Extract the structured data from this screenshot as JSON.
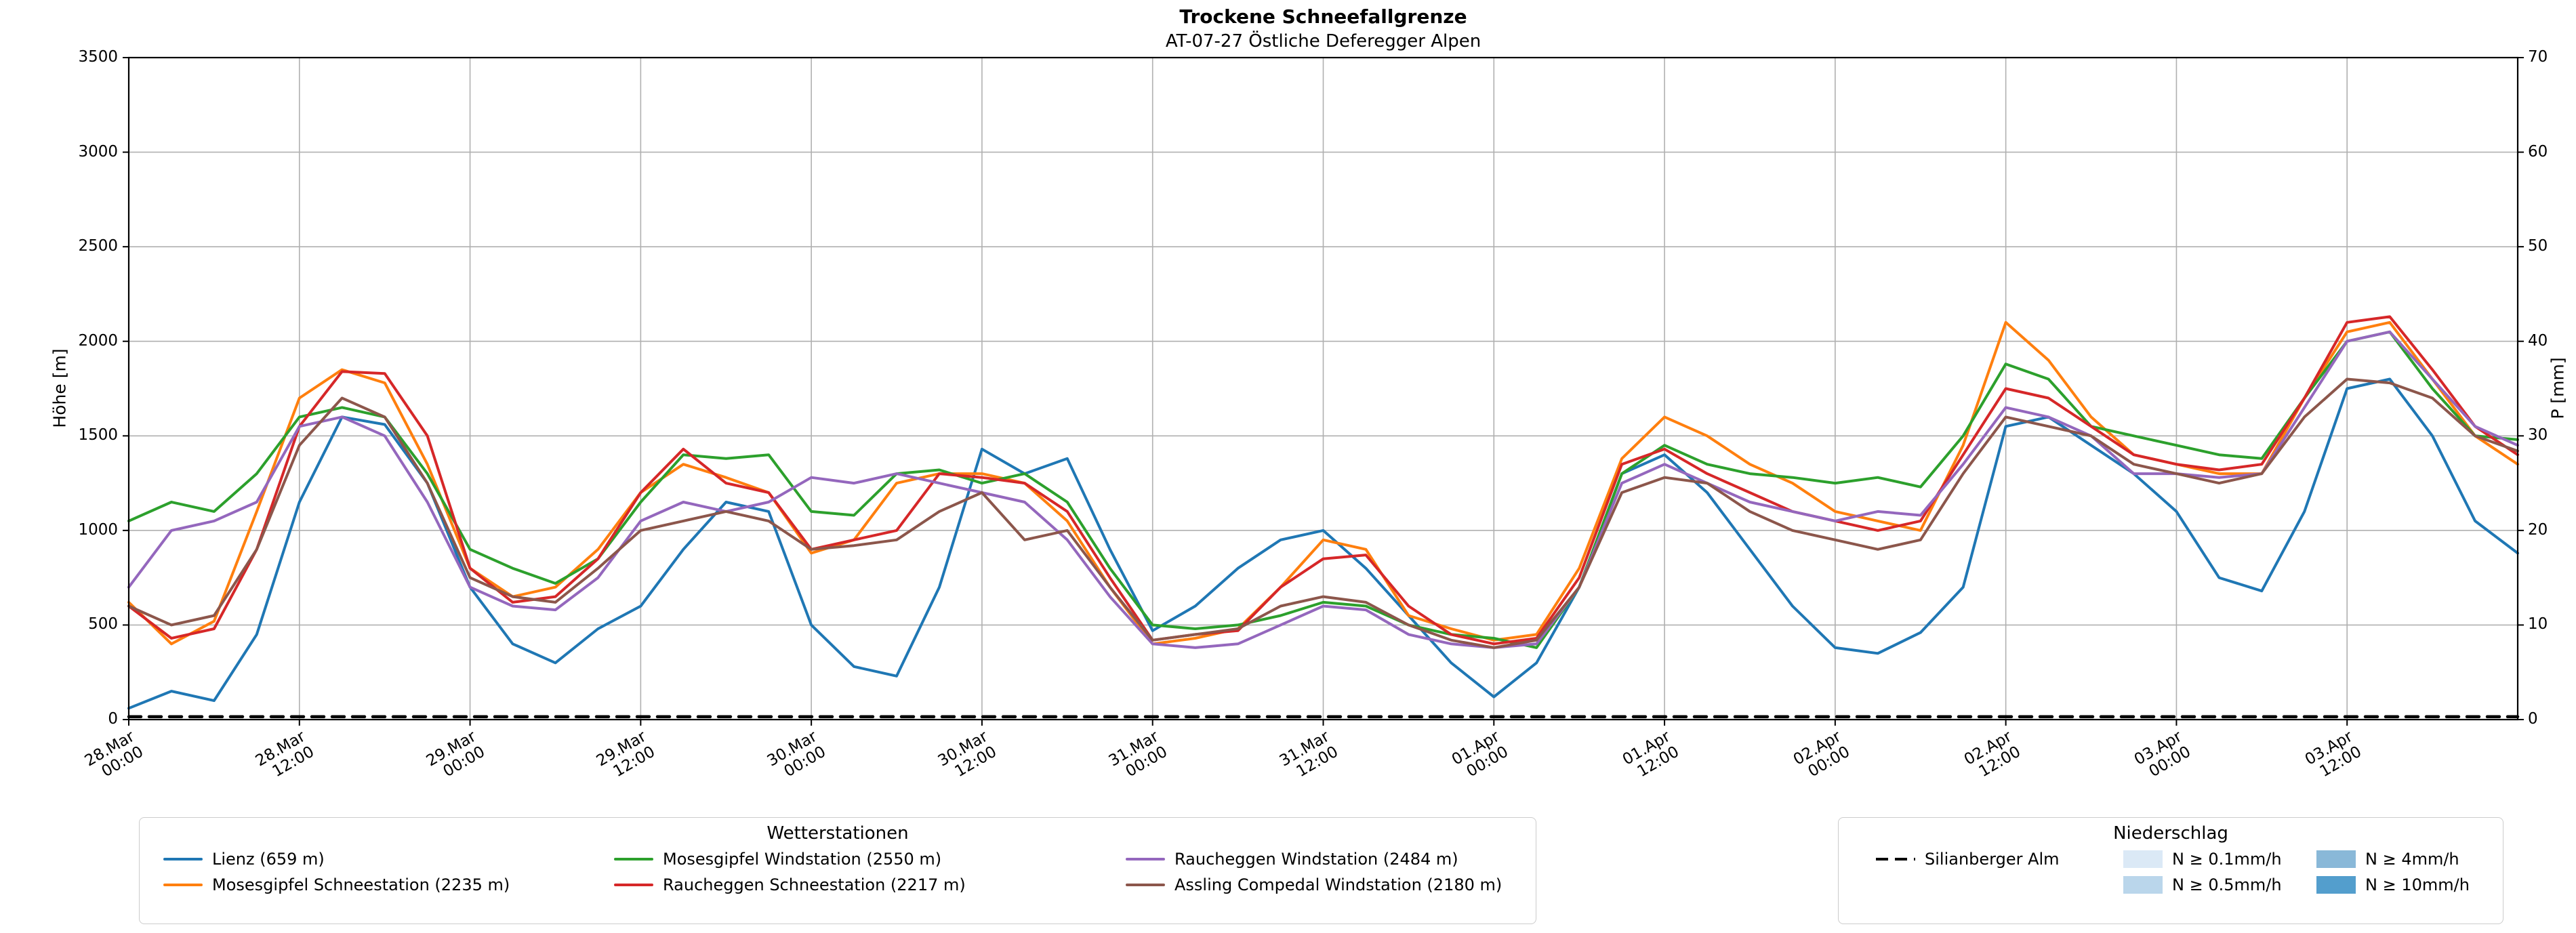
{
  "chart_data": {
    "type": "line",
    "title": "Trockene Schneefallgrenze",
    "subtitle": "AT-07-27 Östliche Deferegger Alpen",
    "ylabel_left": "Höhe [m]",
    "ylabel_right": "P [mm]",
    "xlabel": "",
    "grid": true,
    "legend_position": "bottom",
    "x_unit": "hours since 28.Mar 00:00",
    "x": [
      0,
      3,
      6,
      9,
      12,
      15,
      18,
      21,
      24,
      27,
      30,
      33,
      36,
      39,
      42,
      45,
      48,
      51,
      54,
      57,
      60,
      63,
      66,
      69,
      72,
      75,
      78,
      81,
      84,
      87,
      90,
      93,
      96,
      99,
      102,
      105,
      108,
      111,
      114,
      117,
      120,
      123,
      126,
      129,
      132,
      135,
      138,
      141,
      144,
      147,
      150,
      153,
      156,
      159,
      162,
      165,
      168
    ],
    "x_ticks": [
      {
        "hour": 0,
        "date": "28.Mar",
        "time": "00:00"
      },
      {
        "hour": 12,
        "date": "28.Mar",
        "time": "12:00"
      },
      {
        "hour": 24,
        "date": "29.Mar",
        "time": "00:00"
      },
      {
        "hour": 36,
        "date": "29.Mar",
        "time": "12:00"
      },
      {
        "hour": 48,
        "date": "30.Mar",
        "time": "00:00"
      },
      {
        "hour": 60,
        "date": "30.Mar",
        "time": "12:00"
      },
      {
        "hour": 72,
        "date": "31.Mar",
        "time": "00:00"
      },
      {
        "hour": 84,
        "date": "31.Mar",
        "time": "12:00"
      },
      {
        "hour": 96,
        "date": "01.Apr",
        "time": "00:00"
      },
      {
        "hour": 108,
        "date": "01.Apr",
        "time": "12:00"
      },
      {
        "hour": 120,
        "date": "02.Apr",
        "time": "00:00"
      },
      {
        "hour": 132,
        "date": "02.Apr",
        "time": "12:00"
      },
      {
        "hour": 144,
        "date": "03.Apr",
        "time": "00:00"
      },
      {
        "hour": 156,
        "date": "03.Apr",
        "time": "12:00"
      }
    ],
    "ylim_left": [
      0,
      3500
    ],
    "y_left_ticks": [
      0,
      500,
      1000,
      1500,
      2000,
      2500,
      3000,
      3500
    ],
    "ylim_right": [
      0,
      70
    ],
    "y_right_ticks": [
      0,
      10,
      20,
      30,
      40,
      50,
      60,
      70
    ],
    "series": [
      {
        "name": "Lienz (659 m)",
        "color": "#1f77b4",
        "values": [
          60,
          150,
          100,
          450,
          1150,
          1600,
          1560,
          1250,
          700,
          400,
          300,
          480,
          600,
          900,
          1150,
          1100,
          500,
          280,
          230,
          700,
          1430,
          1300,
          1380,
          900,
          470,
          600,
          800,
          950,
          1000,
          800,
          550,
          300,
          120,
          300,
          700,
          1300,
          1400,
          1200,
          900,
          600,
          380,
          350,
          460,
          700,
          1550,
          1600,
          1450,
          1300,
          1100,
          750,
          680,
          1100,
          1750,
          1800,
          1500,
          1050,
          880
        ]
      },
      {
        "name": "Mosesgipfel Schneestation (2235 m)",
        "color": "#ff7f0e",
        "values": [
          620,
          400,
          520,
          1100,
          1700,
          1850,
          1780,
          1350,
          800,
          650,
          700,
          900,
          1200,
          1350,
          1280,
          1200,
          880,
          950,
          1250,
          1300,
          1300,
          1250,
          1050,
          700,
          400,
          430,
          480,
          700,
          950,
          900,
          550,
          480,
          420,
          450,
          800,
          1380,
          1600,
          1500,
          1350,
          1250,
          1100,
          1050,
          1000,
          1450,
          2100,
          1900,
          1600,
          1400,
          1350,
          1300,
          1300,
          1700,
          2050,
          2100,
          1800,
          1500,
          1350
        ]
      },
      {
        "name": "Mosesgipfel Windstation (2550 m)",
        "color": "#2ca02c",
        "values": [
          1050,
          1150,
          1100,
          1300,
          1600,
          1650,
          1600,
          1300,
          900,
          800,
          720,
          850,
          1150,
          1400,
          1380,
          1400,
          1100,
          1080,
          1300,
          1320,
          1250,
          1300,
          1150,
          800,
          500,
          480,
          500,
          550,
          620,
          600,
          500,
          450,
          430,
          380,
          700,
          1300,
          1450,
          1350,
          1300,
          1280,
          1250,
          1280,
          1230,
          1500,
          1880,
          1800,
          1550,
          1500,
          1450,
          1400,
          1380,
          1700,
          2000,
          2050,
          1750,
          1500,
          1480
        ]
      },
      {
        "name": "Raucheggen Schneestation (2217 m)",
        "color": "#d62728",
        "values": [
          600,
          430,
          480,
          900,
          1550,
          1840,
          1830,
          1500,
          800,
          620,
          650,
          850,
          1200,
          1430,
          1250,
          1200,
          900,
          950,
          1000,
          1300,
          1280,
          1250,
          1100,
          750,
          420,
          450,
          470,
          700,
          850,
          870,
          600,
          450,
          400,
          430,
          750,
          1350,
          1430,
          1300,
          1200,
          1100,
          1050,
          1000,
          1050,
          1400,
          1750,
          1700,
          1550,
          1400,
          1350,
          1320,
          1350,
          1700,
          2100,
          2130,
          1850,
          1550,
          1400
        ]
      },
      {
        "name": "Raucheggen Windstation (2484 m)",
        "color": "#9467bd",
        "values": [
          700,
          1000,
          1050,
          1150,
          1550,
          1600,
          1500,
          1150,
          700,
          600,
          580,
          750,
          1050,
          1150,
          1100,
          1150,
          1280,
          1250,
          1300,
          1250,
          1200,
          1150,
          950,
          650,
          400,
          380,
          400,
          500,
          600,
          580,
          450,
          400,
          380,
          400,
          700,
          1250,
          1350,
          1250,
          1150,
          1100,
          1050,
          1100,
          1080,
          1350,
          1650,
          1600,
          1500,
          1300,
          1300,
          1280,
          1300,
          1650,
          2000,
          2050,
          1800,
          1550,
          1450
        ]
      },
      {
        "name": "Assling Compedal Windstation (2180 m)",
        "color": "#8c564b",
        "values": [
          600,
          500,
          550,
          900,
          1450,
          1700,
          1600,
          1250,
          750,
          650,
          620,
          800,
          1000,
          1050,
          1100,
          1050,
          900,
          920,
          950,
          1100,
          1200,
          950,
          1000,
          700,
          420,
          450,
          480,
          600,
          650,
          620,
          500,
          420,
          380,
          420,
          700,
          1200,
          1280,
          1250,
          1100,
          1000,
          950,
          900,
          950,
          1300,
          1600,
          1550,
          1500,
          1350,
          1300,
          1250,
          1300,
          1600,
          1800,
          1780,
          1700,
          1500,
          1420
        ]
      },
      {
        "name": "Silianberger Alm",
        "color": "#000000",
        "dashed": true,
        "constant_value": 15
      }
    ]
  },
  "legend_stations": {
    "title": "Wetterstationen",
    "items": [
      {
        "label": "Lienz (659 m)",
        "color": "#1f77b4"
      },
      {
        "label": "Mosesgipfel Windstation (2550 m)",
        "color": "#2ca02c"
      },
      {
        "label": "Raucheggen Windstation (2484 m)",
        "color": "#9467bd"
      },
      {
        "label": "Mosesgipfel Schneestation (2235 m)",
        "color": "#ff7f0e"
      },
      {
        "label": "Raucheggen Schneestation (2217 m)",
        "color": "#d62728"
      },
      {
        "label": "Assling Compedal Windstation (2180 m)",
        "color": "#8c564b"
      }
    ]
  },
  "legend_precip": {
    "title": "Niederschlag",
    "line_item": {
      "label": "Silianberger Alm",
      "color": "#000000"
    },
    "patch_items": [
      {
        "label": "N ≥ 0.1mm/h",
        "color": "#dbe9f6"
      },
      {
        "label": "N ≥ 0.5mm/h",
        "color": "#bad6eb"
      },
      {
        "label": "N ≥ 4mm/h",
        "color": "#89b8d8"
      },
      {
        "label": "N ≥ 10mm/h",
        "color": "#539ecd"
      }
    ]
  }
}
